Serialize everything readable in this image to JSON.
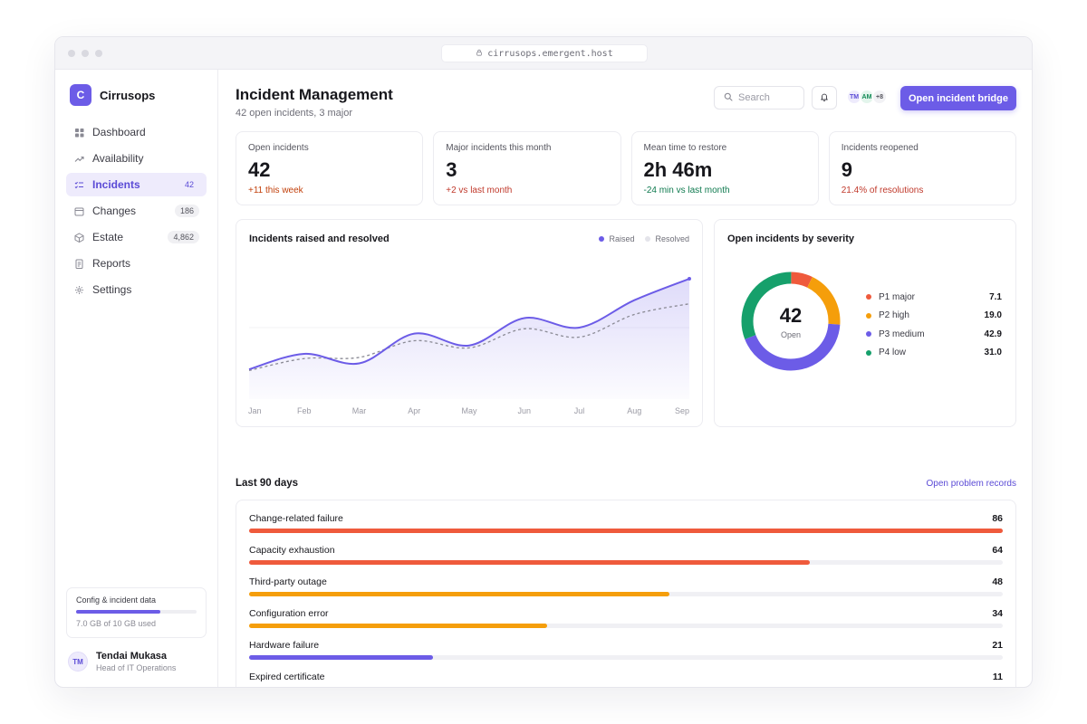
{
  "browser": {
    "url": "cirrusops.emergent.host"
  },
  "brand": {
    "logo_letter": "C",
    "name": "Cirrusops"
  },
  "sidebar": {
    "items": [
      {
        "label": "Dashboard",
        "icon": "grid-icon",
        "badge": ""
      },
      {
        "label": "Availability",
        "icon": "trend-icon",
        "badge": ""
      },
      {
        "label": "Incidents",
        "icon": "checklist-icon",
        "badge": "42",
        "active": true
      },
      {
        "label": "Changes",
        "icon": "calendar-icon",
        "badge": "186"
      },
      {
        "label": "Estate",
        "icon": "cube-icon",
        "badge": "4,862"
      },
      {
        "label": "Reports",
        "icon": "document-icon",
        "badge": ""
      },
      {
        "label": "Settings",
        "icon": "gear-icon",
        "badge": ""
      }
    ],
    "storage": {
      "title": "Config & incident data",
      "used_fraction": 0.7,
      "label": "7.0 GB of 10 GB used"
    },
    "user": {
      "initials": "TM",
      "name": "Tendai Mukasa",
      "role": "Head of IT Operations"
    }
  },
  "header": {
    "title": "Incident Management",
    "subtitle": "42 open incidents, 3 major",
    "search_placeholder": "Search",
    "avatars": [
      "TM",
      "AM"
    ],
    "avatar_more": "+8",
    "cta_label": "Open incident bridge"
  },
  "kpis": [
    {
      "label": "Open incidents",
      "value": "42",
      "delta": "+11 this week",
      "delta_color": "#c2410c"
    },
    {
      "label": "Major incidents this month",
      "value": "3",
      "delta": "+2 vs last month",
      "delta_color": "#c0392b"
    },
    {
      "label": "Mean time to restore",
      "value": "2h 46m",
      "delta": "-24 min vs last month",
      "delta_color": "#0f7a4f"
    },
    {
      "label": "Incidents reopened",
      "value": "9",
      "delta": "21.4% of resolutions",
      "delta_color": "#c0392b"
    }
  ],
  "line_card": {
    "title": "Incidents raised and resolved"
  },
  "severity_card": {
    "title": "Open incidents by severity",
    "center_value": "42",
    "center_label": "Open"
  },
  "recent": {
    "title": "Last 90 days",
    "link": "Open problem records"
  },
  "chart_data": [
    {
      "type": "line",
      "title": "Incidents raised and resolved",
      "categories": [
        "Jan",
        "Feb",
        "Mar",
        "Apr",
        "May",
        "Jun",
        "Jul",
        "Aug",
        "Sep"
      ],
      "series": [
        {
          "name": "Raised",
          "values": [
            25,
            38,
            30,
            55,
            45,
            68,
            60,
            83,
            101
          ],
          "color": "#6c5ce7"
        },
        {
          "name": "Resolved",
          "values": [
            24,
            34,
            35,
            49,
            43,
            59,
            52,
            71,
            80
          ],
          "color": "#8a8a94"
        }
      ],
      "ylim": [
        0,
        120
      ],
      "grid": false,
      "legend": "top-right"
    },
    {
      "type": "pie",
      "title": "Open incidents by severity",
      "categories": [
        "P1 major",
        "P2 high",
        "P3 medium",
        "P4 low"
      ],
      "values": [
        7.1,
        19.0,
        42.9,
        31.0
      ],
      "colors": [
        "#ef5a3c",
        "#f59e0b",
        "#6c5ce7",
        "#16a06b"
      ],
      "legend": "right"
    },
    {
      "type": "bar",
      "title": "Last 90 days",
      "categories": [
        "Change-related failure",
        "Capacity exhaustion",
        "Third-party outage",
        "Configuration error",
        "Hardware failure",
        "Expired certificate"
      ],
      "values": [
        86,
        64,
        48,
        34,
        21,
        11
      ],
      "colors": [
        "#ef5a3c",
        "#ef5a3c",
        "#f59e0b",
        "#f59e0b",
        "#6c5ce7",
        "#16a06b"
      ],
      "xlim": [
        0,
        86
      ]
    }
  ]
}
